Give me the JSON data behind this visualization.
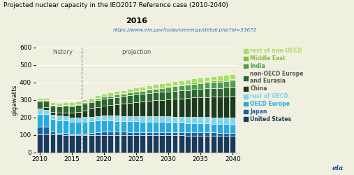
{
  "title": "Projected nuclear capacity in the IEO2017 Reference case (2010-2040)",
  "url": "https://www.eia.gov/todayinenergy/detail.php?id=33672",
  "ylabel": "gigawatts",
  "years": [
    2010,
    2011,
    2012,
    2013,
    2014,
    2015,
    2016,
    2017,
    2018,
    2019,
    2020,
    2021,
    2022,
    2023,
    2024,
    2025,
    2026,
    2027,
    2028,
    2029,
    2030,
    2031,
    2032,
    2033,
    2034,
    2035,
    2036,
    2037,
    2038,
    2039,
    2040
  ],
  "series": {
    "United States": [
      101,
      102,
      102,
      102,
      100,
      99,
      99,
      99,
      99,
      99,
      99,
      99,
      99,
      99,
      98,
      98,
      98,
      98,
      98,
      97,
      97,
      97,
      97,
      96,
      96,
      96,
      95,
      95,
      94,
      94,
      93
    ],
    "Japan": [
      47,
      44,
      16,
      10,
      10,
      2,
      2,
      5,
      10,
      15,
      18,
      18,
      18,
      18,
      18,
      18,
      18,
      18,
      18,
      18,
      18,
      18,
      18,
      18,
      18,
      18,
      18,
      18,
      18,
      18,
      18
    ],
    "OECD Europe": [
      72,
      72,
      72,
      72,
      72,
      72,
      72,
      70,
      68,
      67,
      66,
      65,
      63,
      62,
      62,
      61,
      60,
      59,
      58,
      58,
      57,
      56,
      55,
      54,
      54,
      53,
      52,
      51,
      50,
      50,
      49
    ],
    "rest of OECD": [
      25,
      26,
      26,
      26,
      26,
      26,
      26,
      27,
      27,
      27,
      28,
      28,
      29,
      29,
      30,
      30,
      31,
      31,
      32,
      32,
      33,
      33,
      34,
      34,
      35,
      35,
      36,
      36,
      37,
      37,
      38
    ],
    "China": [
      11,
      13,
      15,
      16,
      20,
      27,
      32,
      39,
      45,
      51,
      56,
      61,
      66,
      71,
      76,
      80,
      84,
      88,
      92,
      95,
      98,
      101,
      104,
      107,
      110,
      113,
      115,
      117,
      119,
      121,
      123
    ],
    "non-OECD Europe\nand Eurasia": [
      36,
      36,
      36,
      37,
      38,
      38,
      38,
      38,
      38,
      40,
      40,
      41,
      41,
      42,
      42,
      43,
      43,
      44,
      44,
      45,
      45,
      46,
      46,
      47,
      48,
      48,
      49,
      50,
      50,
      51,
      51
    ],
    "India": [
      5,
      5,
      5,
      5,
      5,
      6,
      6,
      7,
      8,
      9,
      10,
      11,
      13,
      14,
      15,
      17,
      18,
      20,
      21,
      23,
      24,
      26,
      27,
      29,
      30,
      32,
      33,
      34,
      35,
      36,
      37
    ],
    "Middle East": [
      0,
      0,
      0,
      0,
      0,
      0,
      0,
      0,
      0,
      1,
      1,
      1,
      1,
      2,
      2,
      3,
      3,
      4,
      4,
      5,
      5,
      6,
      6,
      7,
      7,
      8,
      8,
      9,
      9,
      9,
      10
    ],
    "rest of non-OECD": [
      14,
      14,
      15,
      15,
      16,
      16,
      16,
      17,
      17,
      17,
      18,
      18,
      19,
      19,
      20,
      20,
      21,
      21,
      22,
      22,
      23,
      23,
      24,
      24,
      25,
      25,
      26,
      26,
      27,
      27,
      28
    ]
  },
  "colors": {
    "United States": "#1a3a5c",
    "Japan": "#1464a0",
    "OECD Europe": "#28aae1",
    "rest of OECD": "#7fd4f0",
    "China": "#1c3a1c",
    "non-OECD Europe\nand Eurasia": "#2d662d",
    "India": "#4c9e4c",
    "Middle East": "#80c040",
    "rest of non-OECD": "#aadd66"
  },
  "legend_text_colors": {
    "United States": "#1a3a5c",
    "Japan": "#1464a0",
    "OECD Europe": "#28aae1",
    "rest of OECD": "#7fd4f0",
    "China": "#333333",
    "non-OECD Europe\nand Eurasia": "#333333",
    "India": "#4c9e4c",
    "Middle East": "#80c040",
    "rest of non-OECD": "#aadd66"
  },
  "ylim": [
    0,
    600
  ],
  "yticks": [
    0,
    100,
    200,
    300,
    400,
    500,
    600
  ],
  "split_year": 2016,
  "bg_color": "#f0f0e0",
  "bar_width": 0.85
}
